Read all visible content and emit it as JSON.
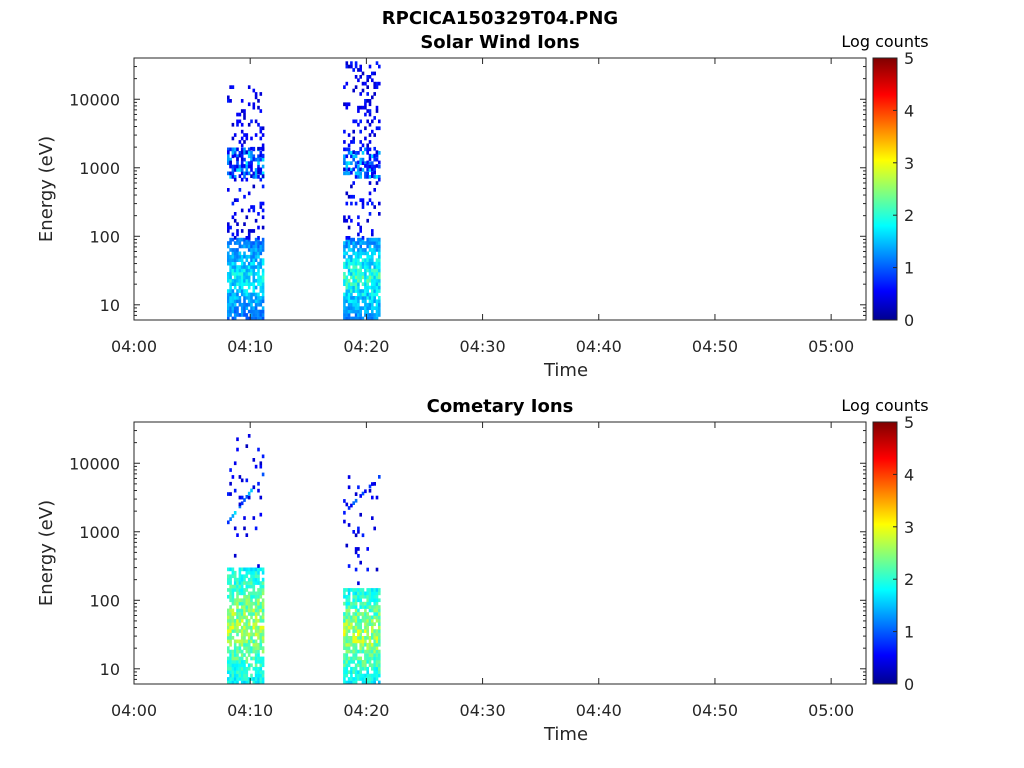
{
  "figure": {
    "title": "RPCICA150329T04.PNG"
  },
  "chart_data": [
    {
      "type": "heatmap",
      "title": "Solar Wind Ions",
      "xlabel": "Time",
      "ylabel": "Energy (eV)",
      "x_ticks": [
        "04:00",
        "04:10",
        "04:20",
        "04:30",
        "04:40",
        "04:50",
        "05:00"
      ],
      "xlim": [
        "04:00",
        "05:03"
      ],
      "y_scale": "log",
      "y_ticks": [
        "10",
        "100",
        "1000",
        "10000"
      ],
      "ylim": [
        6,
        40000
      ],
      "colorbar": {
        "label": "Log counts",
        "ticks": [
          "0",
          "1",
          "2",
          "3",
          "4",
          "5"
        ],
        "range": [
          0,
          5
        ],
        "colormap": "jet"
      },
      "bursts": [
        {
          "time_start": "04:08",
          "time_end": "04:11",
          "low_energy_core": {
            "energy_range": [
              6,
              90
            ],
            "log_counts_range": [
              0.5,
              2.2
            ]
          },
          "mid_band": {
            "energy_range": [
              700,
              1800
            ],
            "log_counts_range": [
              0.5,
              1.8
            ]
          },
          "sparse_counts_max_energy": 15000
        },
        {
          "time_start": "04:18",
          "time_end": "04:21",
          "low_energy_core": {
            "energy_range": [
              6,
              90
            ],
            "log_counts_range": [
              0.5,
              2.5
            ]
          },
          "mid_band": {
            "energy_range": [
              700,
              1800
            ],
            "log_counts_range": [
              0.5,
              1.8
            ]
          },
          "sparse_counts_max_energy": 33000
        }
      ]
    },
    {
      "type": "heatmap",
      "title": "Cometary Ions",
      "xlabel": "Time",
      "ylabel": "Energy (eV)",
      "x_ticks": [
        "04:00",
        "04:10",
        "04:20",
        "04:30",
        "04:40",
        "04:50",
        "05:00"
      ],
      "xlim": [
        "04:00",
        "05:03"
      ],
      "y_scale": "log",
      "y_ticks": [
        "10",
        "100",
        "1000",
        "10000"
      ],
      "ylim": [
        6,
        40000
      ],
      "colorbar": {
        "label": "Log counts",
        "ticks": [
          "0",
          "1",
          "2",
          "3",
          "4",
          "5"
        ],
        "range": [
          0,
          5
        ],
        "colormap": "jet"
      },
      "bursts": [
        {
          "time_start": "04:08",
          "time_end": "04:11",
          "low_energy_core": {
            "energy_range": [
              6,
              300
            ],
            "log_counts_range": [
              1.0,
              3.2
            ]
          },
          "high_energy_branch": {
            "energy_range": [
              1300,
              6500
            ],
            "log_counts_range": [
              0.5,
              2.0
            ]
          },
          "sparse_counts_max_energy": 35000
        },
        {
          "time_start": "04:18",
          "time_end": "04:21",
          "low_energy_core": {
            "energy_range": [
              6,
              150
            ],
            "log_counts_range": [
              1.0,
              3.2
            ]
          },
          "high_energy_branch": {
            "energy_range": [
              1800,
              6000
            ],
            "log_counts_range": [
              0.3,
              1.2
            ]
          },
          "sparse_counts_max_energy": 6000
        }
      ]
    }
  ]
}
